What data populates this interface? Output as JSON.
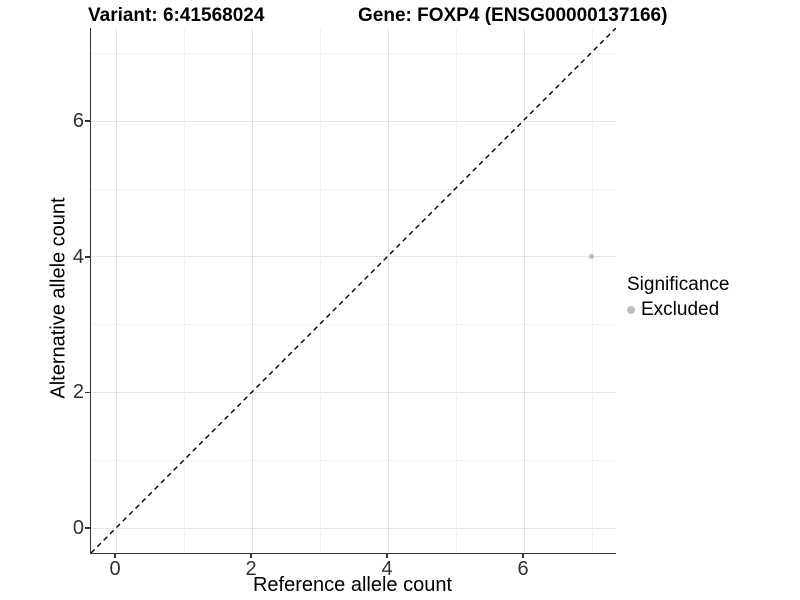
{
  "chart_data": {
    "type": "scatter",
    "titles": [
      "Variant: 6:41568024",
      "Gene: FOXP4 (ENSG00000137166)"
    ],
    "xlabel": "Reference allele count",
    "ylabel": "Alternative allele count",
    "xlim": [
      -0.37,
      7.37
    ],
    "ylim": [
      -0.37,
      7.37
    ],
    "x_ticks": [
      0,
      2,
      4,
      6
    ],
    "y_ticks": [
      0,
      2,
      4,
      6
    ],
    "grid": {
      "major": [
        0,
        2,
        4,
        6
      ],
      "minor": [
        1,
        3,
        5,
        7
      ],
      "visible": true
    },
    "points": [
      {
        "x": 7,
        "y": 4,
        "significance": "Excluded"
      }
    ],
    "reference_line": {
      "style": "dashed",
      "slope": 1,
      "intercept": 0,
      "color": "#000000"
    },
    "legend": {
      "title": "Significance",
      "position": "right",
      "items": [
        {
          "label": "Excluded",
          "color": "#bdbdbd"
        }
      ]
    },
    "colors": {
      "excluded_point": "#bdbdbd",
      "grid_major": "#e5e5e5",
      "grid_minor": "#f2f2f2",
      "axis_line": "#333333",
      "background": "#ffffff"
    }
  }
}
